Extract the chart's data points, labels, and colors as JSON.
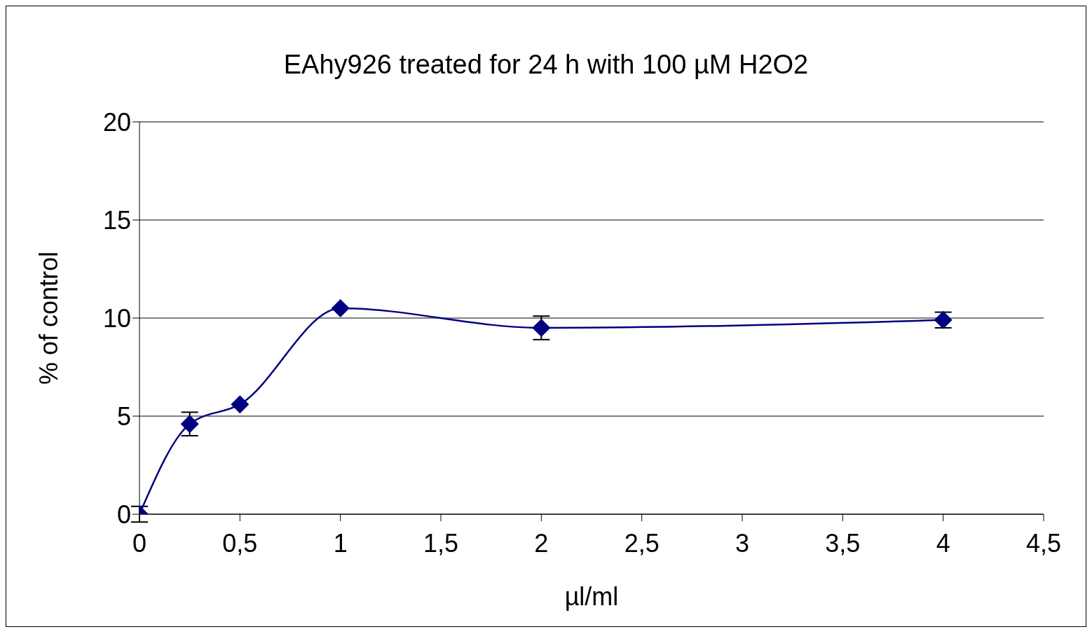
{
  "chart_data": {
    "type": "line",
    "title": "EAhy926 treated for 24 h with 100 µM H2O2",
    "xlabel": "µl/ml",
    "ylabel": "% of control",
    "x": [
      0,
      0.25,
      0.5,
      1,
      2,
      4
    ],
    "series": [
      {
        "color": "#000080",
        "values": [
          0,
          4.6,
          5.6,
          10.5,
          9.5,
          9.9
        ],
        "errors": [
          0.4,
          0.6,
          null,
          null,
          0.6,
          0.4
        ]
      }
    ],
    "xlim": [
      0,
      4.5
    ],
    "xticks": [
      0,
      {
        "value": 0.5,
        "label": "0,5"
      },
      1,
      {
        "value": 1.5,
        "label": "1,5"
      },
      2,
      {
        "value": 2.5,
        "label": "2,5"
      },
      3,
      {
        "value": 3.5,
        "label": "3,5"
      },
      4,
      {
        "value": 4.5,
        "label": "4,5"
      }
    ],
    "ylim": [
      0,
      20
    ],
    "yticks": [
      0,
      5,
      10,
      15,
      20
    ],
    "grid": "y",
    "marker": "diamond",
    "line_style": "solid"
  }
}
